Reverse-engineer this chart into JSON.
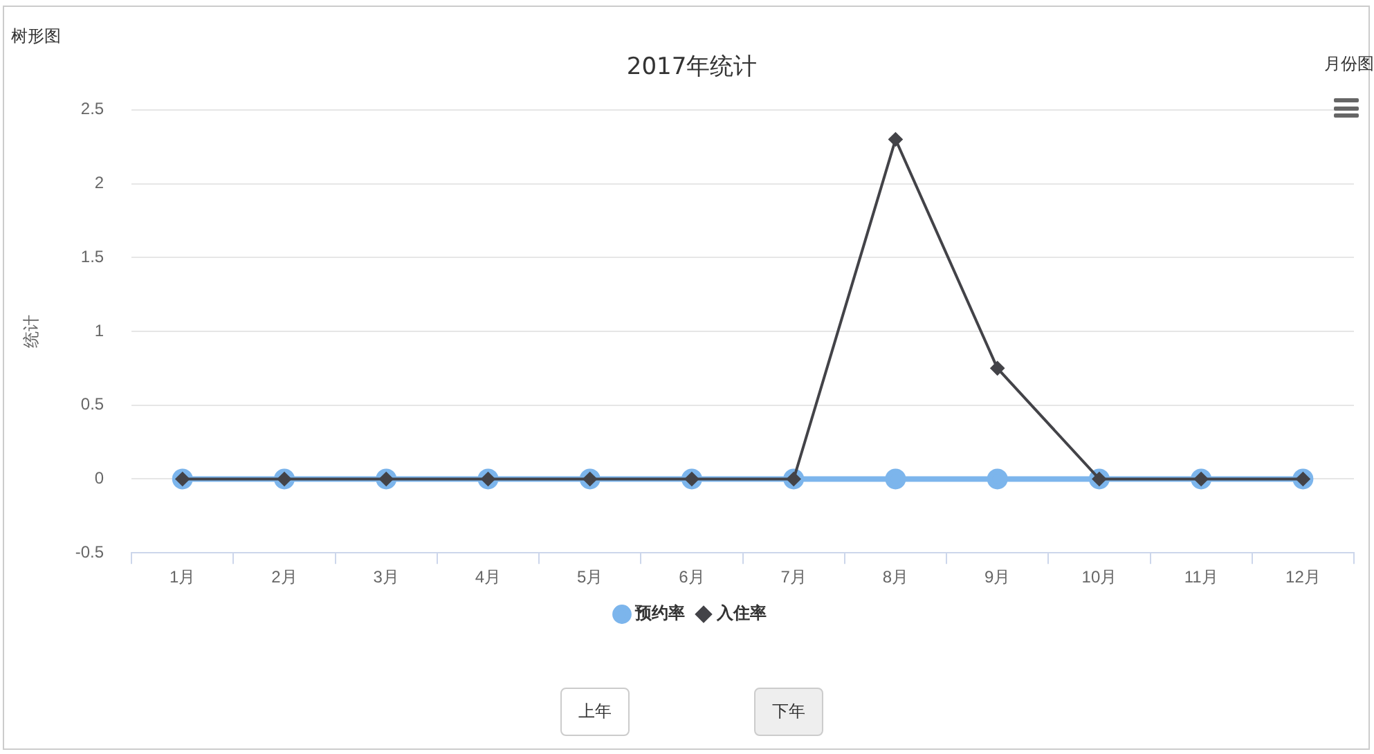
{
  "chart_data": {
    "type": "line",
    "title": "2017年统计",
    "ylabel": "统计",
    "categories": [
      "1月",
      "2月",
      "3月",
      "4月",
      "5月",
      "6月",
      "7月",
      "8月",
      "9月",
      "10月",
      "11月",
      "12月"
    ],
    "series": [
      {
        "name": "预约率",
        "color": "#7cb5ec",
        "marker": "circle",
        "values": [
          0,
          0,
          0,
          0,
          0,
          0,
          0,
          0,
          0,
          0,
          0,
          0
        ]
      },
      {
        "name": "入住率",
        "color": "#434348",
        "marker": "diamond",
        "values": [
          0,
          0,
          0,
          0,
          0,
          0,
          0,
          2.3,
          0.75,
          0,
          0,
          0
        ]
      }
    ],
    "ylim": [
      -0.5,
      2.5
    ],
    "yticks": [
      -0.5,
      0,
      0.5,
      1,
      1.5,
      2,
      2.5
    ],
    "grid": "y",
    "legend": "bottom",
    "line_style": "solid",
    "annotations": [
      "树形图",
      "月份图",
      "上年",
      "下年"
    ]
  }
}
